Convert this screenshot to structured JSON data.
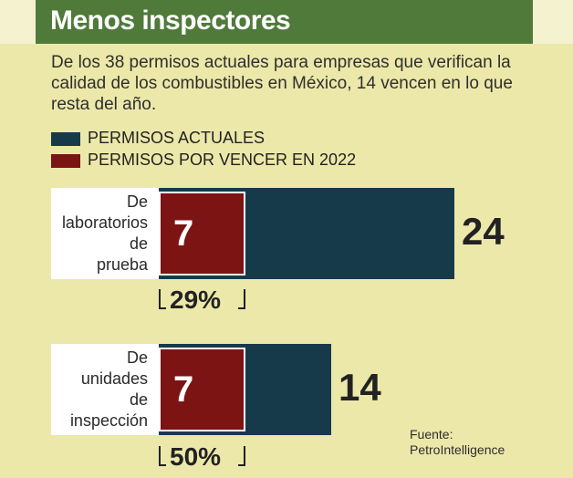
{
  "title": "Menos inspectores",
  "subtitle": "De los 38 permisos actuales para empresas que verifican la calidad de los combustibles en México, 14 vencen en lo que resta del año.",
  "source": {
    "label": "Fuente:",
    "name": "PetroIntelligence"
  },
  "colors": {
    "actuales": "#173a4b",
    "por_vencer": "#7c1414",
    "header": "#4f7a3a",
    "background": "#ece8a9"
  },
  "chart_data": {
    "type": "bar",
    "orientation": "horizontal",
    "stacked": "overlay",
    "legend": [
      "PERMISOS ACTUALES",
      "PERMISOS POR VENCER EN 2022"
    ],
    "categories": [
      "De laboratorios de prueba",
      "De unidades de inspección"
    ],
    "series": [
      {
        "name": "PERMISOS ACTUALES",
        "values": [
          24,
          14
        ]
      },
      {
        "name": "PERMISOS POR VENCER EN 2022",
        "values": [
          7,
          7
        ]
      }
    ],
    "percentages": [
      "29%",
      "50%"
    ],
    "value_labels": {
      "actuales": [
        "24",
        "14"
      ],
      "por_vencer": [
        "7",
        "7"
      ]
    }
  }
}
